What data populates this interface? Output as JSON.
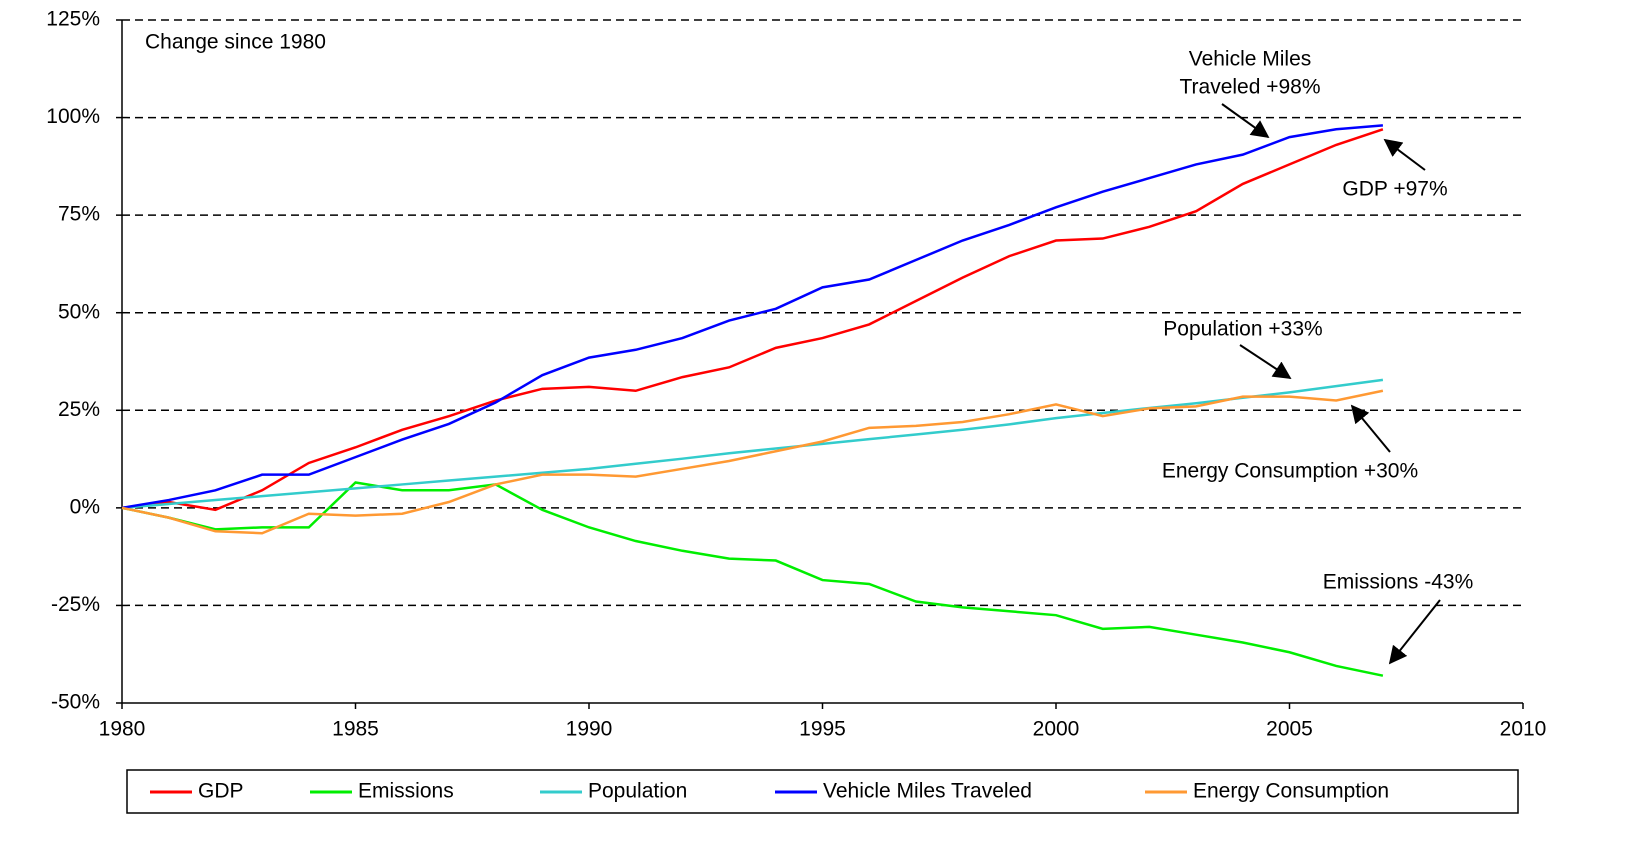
{
  "chart_data": {
    "type": "line",
    "subtitle": "Change since 1980",
    "x": [
      1980,
      1981,
      1982,
      1983,
      1984,
      1985,
      1986,
      1987,
      1988,
      1989,
      1990,
      1991,
      1992,
      1993,
      1994,
      1995,
      1996,
      1997,
      1998,
      1999,
      2000,
      2001,
      2002,
      2003,
      2004,
      2005,
      2006,
      2007
    ],
    "series": [
      {
        "name": "GDP",
        "color": "#ff0000",
        "values": [
          0,
          1.5,
          -0.5,
          4.5,
          11.5,
          15.5,
          20,
          23.5,
          27.5,
          30.5,
          31,
          30,
          33.5,
          36,
          41,
          43.5,
          47,
          53,
          59,
          64.5,
          68.5,
          69,
          72,
          76,
          83,
          88,
          93,
          97
        ]
      },
      {
        "name": "Emissions",
        "color": "#00ee00",
        "values": [
          0,
          -2.5,
          -5.5,
          -5,
          -5,
          6.5,
          4.5,
          4.5,
          6,
          -0.5,
          -5,
          -8.5,
          -11,
          -13,
          -13.5,
          -18.5,
          -19.5,
          -24,
          -25.5,
          -26.5,
          -27.5,
          -31,
          -30.5,
          -32.5,
          -34.5,
          -37,
          -40.5,
          -43
        ]
      },
      {
        "name": "Population",
        "color": "#33cccc",
        "values": [
          0,
          1,
          2,
          3,
          4,
          5,
          6,
          7,
          8,
          9,
          10,
          11.3,
          12.6,
          14,
          15.2,
          16.4,
          17.6,
          18.8,
          20,
          21.4,
          23,
          24.3,
          25.6,
          26.8,
          28.2,
          29.6,
          31.2,
          32.8
        ]
      },
      {
        "name": "Vehicle Miles Traveled",
        "color": "#0000ff",
        "values": [
          0,
          2,
          4.5,
          8.5,
          8.5,
          13,
          17.5,
          21.5,
          27,
          34,
          38.5,
          40.5,
          43.5,
          48,
          51,
          56.5,
          58.5,
          63.5,
          68.5,
          72.5,
          77,
          81,
          84.5,
          88,
          90.5,
          95,
          97,
          98
        ]
      },
      {
        "name": "Energy Consumption",
        "color": "#ff9933",
        "values": [
          0,
          -2.5,
          -6,
          -6.5,
          -1.5,
          -2,
          -1.5,
          1.5,
          6,
          8.5,
          8.5,
          8,
          10,
          12,
          14.5,
          17,
          20.5,
          21,
          22,
          24,
          26.5,
          23.5,
          25.5,
          26,
          28.5,
          28.5,
          27.5,
          30
        ]
      }
    ],
    "annotations": [
      [
        "Vehicle Miles",
        "Traveled +98%"
      ],
      [
        "GDP +97%"
      ],
      [
        "Population +33%"
      ],
      [
        "Energy Consumption +30%"
      ],
      [
        "Emissions -43%"
      ]
    ],
    "xlim": [
      1980,
      2010
    ],
    "xticks": [
      1980,
      1985,
      1990,
      1995,
      2000,
      2005,
      2010
    ],
    "ylim": [
      -50,
      125
    ],
    "yticks": [
      {
        "value": -50,
        "label": "-50%"
      },
      {
        "value": -25,
        "label": "-25%"
      },
      {
        "value": 0,
        "label": "0%"
      },
      {
        "value": 25,
        "label": "25%"
      },
      {
        "value": 50,
        "label": "50%"
      },
      {
        "value": 75,
        "label": "75%"
      },
      {
        "value": 100,
        "label": "100%"
      },
      {
        "value": 125,
        "label": "125%"
      }
    ],
    "grid": true,
    "legend": "bottom"
  }
}
